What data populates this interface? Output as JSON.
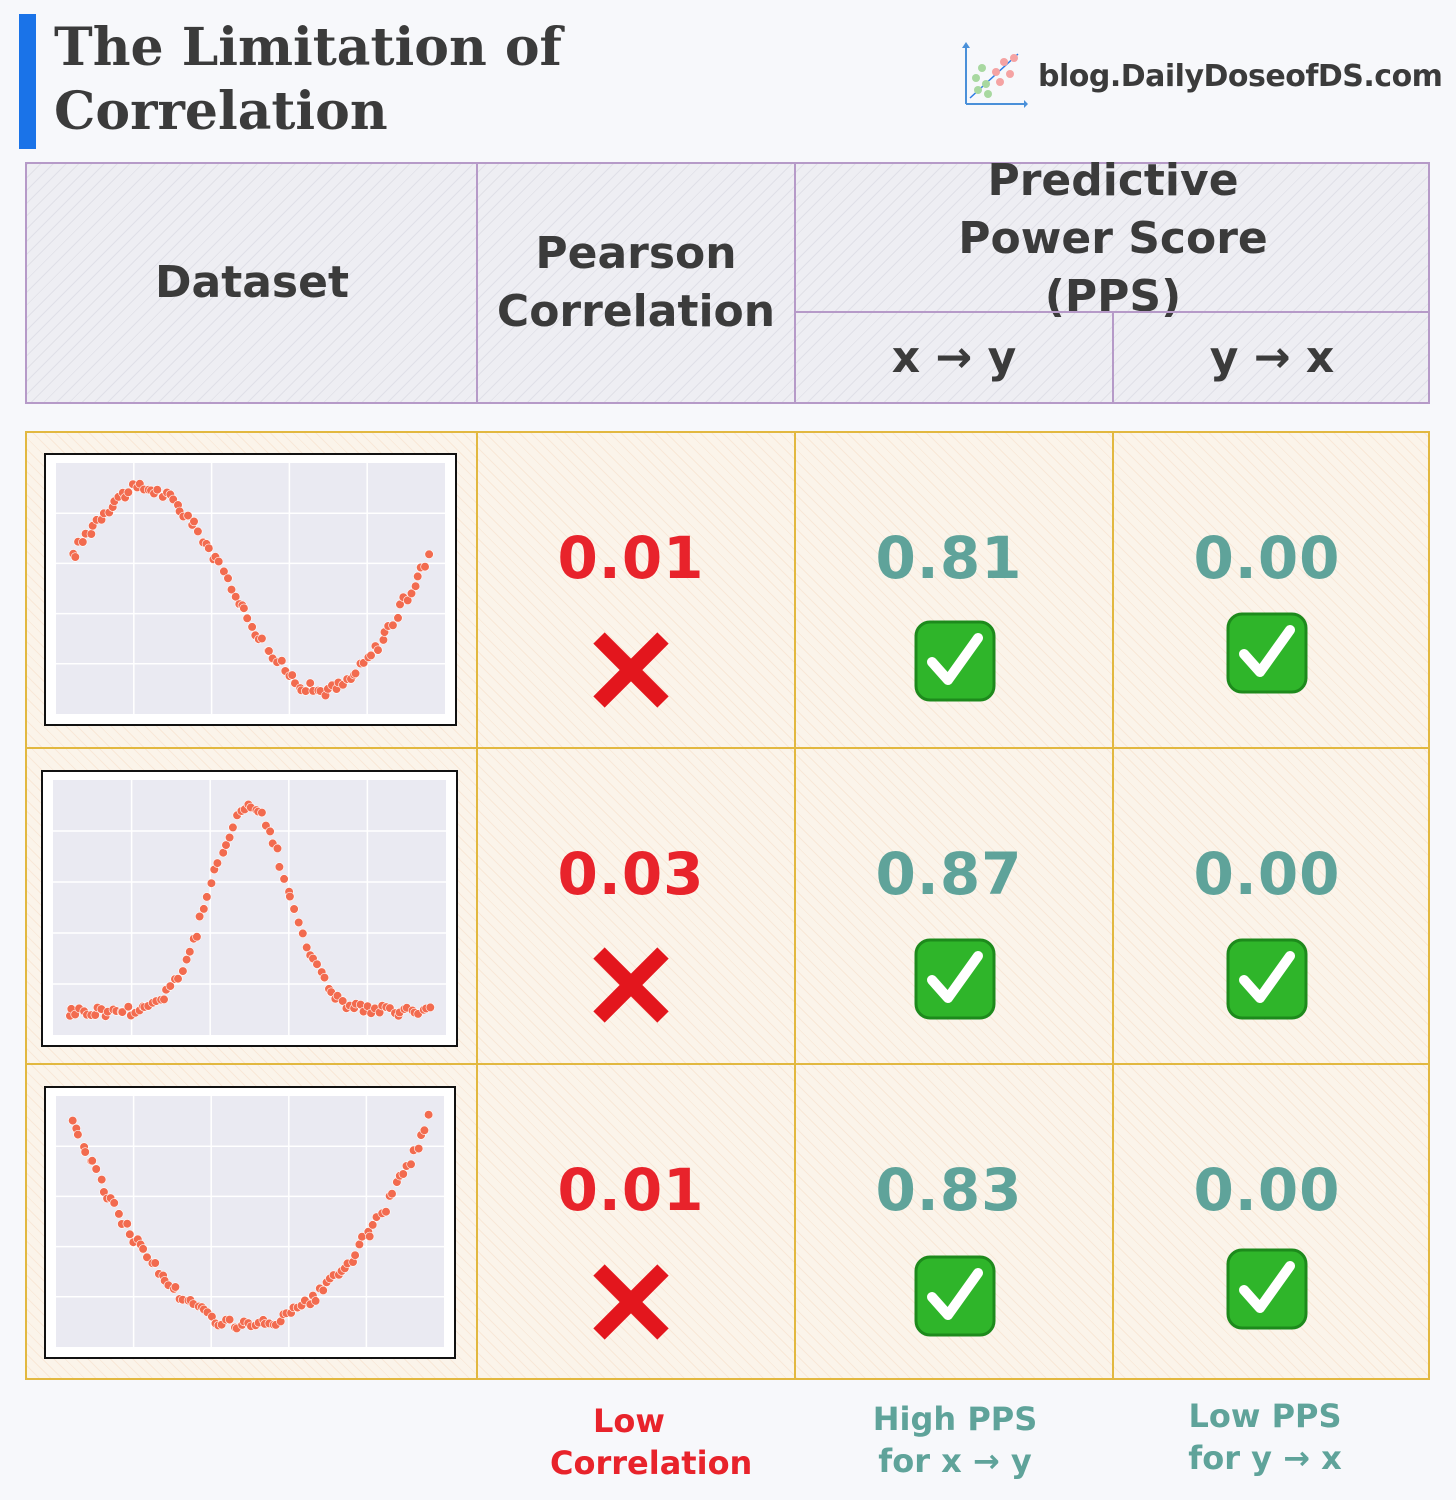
{
  "header": {
    "title": "The Limitation of Correlation",
    "brand": "blog.DailyDoseofDS.com"
  },
  "table": {
    "col_dataset": "Dataset",
    "col_pearson": "Pearson Correlation",
    "col_pps": "Predictive Power Score (PPS)",
    "col_pps_xy": "x → y",
    "col_pps_yx": "y → x",
    "rows": [
      {
        "shape": "sine",
        "pearson": "0.01",
        "pps_xy": "0.81",
        "pps_yx": "0.00"
      },
      {
        "shape": "bell",
        "pearson": "0.03",
        "pps_xy": "0.87",
        "pps_yx": "0.00"
      },
      {
        "shape": "parabola",
        "pearson": "0.01",
        "pps_xy": "0.83",
        "pps_yx": "0.00"
      }
    ]
  },
  "footer": {
    "pearson": "Low Correlation",
    "pps_xy": "High PPS for x → y",
    "pps_yx": "Low PPS for y → x"
  },
  "colors": {
    "accent": "#1a73e8",
    "low": "#e8232b",
    "good": "#5fa39a",
    "point": "#f26b4f",
    "plot_bg": "#eaeaf2"
  },
  "icons": {
    "pearson_status": "cross-mark-icon",
    "pps_status": "check-mark-button-icon"
  }
}
